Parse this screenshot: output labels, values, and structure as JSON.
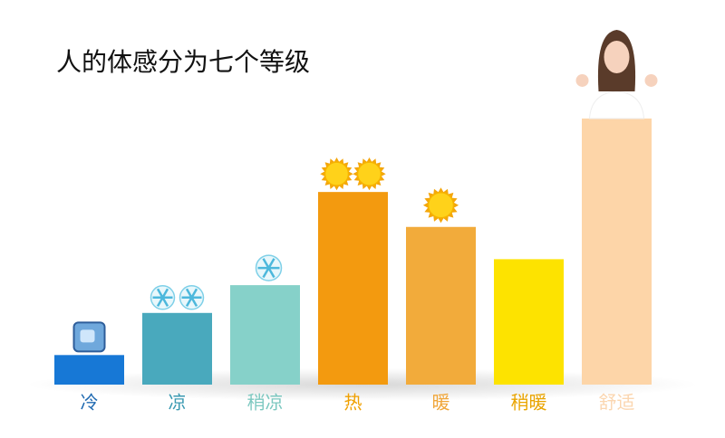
{
  "chart_data": {
    "type": "bar",
    "title": "人的体感分为七个等级",
    "categories": [
      "冷",
      "凉",
      "稍凉",
      "热",
      "暖",
      "稍暖",
      "舒适"
    ],
    "values": [
      33,
      80,
      111,
      215,
      176,
      140,
      297
    ],
    "colors": [
      "#1778d6",
      "#49a9bd",
      "#86d1c9",
      "#f39a0f",
      "#f2ab3b",
      "#fde300",
      "#fdd5a8"
    ],
    "label_colors": [
      "#1d68b0",
      "#3b9ab2",
      "#7cc8c0",
      "#f0a000",
      "#f0a63a",
      "#e9a400",
      "#fbd6b0"
    ],
    "ylim": [
      0,
      300
    ]
  }
}
